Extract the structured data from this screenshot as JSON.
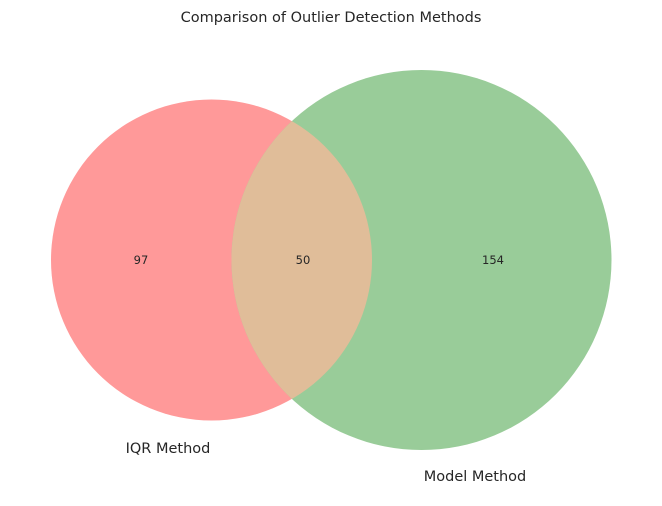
{
  "title": "Comparison of Outlier Detection Methods",
  "sets": [
    {
      "name": "IQR Method",
      "only_count": "97",
      "color": "#ff9999"
    },
    {
      "name": "Model Method",
      "only_count": "154",
      "color": "#99cc99"
    }
  ],
  "intersection": {
    "count": "50",
    "color": "#e0bd99"
  }
}
